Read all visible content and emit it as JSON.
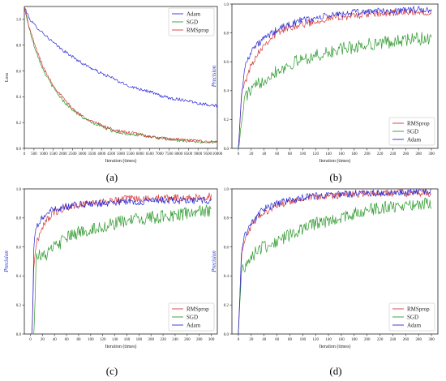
{
  "figure_labels": [
    "(a)",
    "(b)",
    "(c)",
    "(d)"
  ],
  "colors": {
    "Adam": "#2b2bd6",
    "SGD": "#2e9a2e",
    "RMSprop": "#d63a3a"
  },
  "chart_data": [
    {
      "type": "line",
      "panel": "(a)",
      "xlabel": "Iteration (times)",
      "ylabel": "Loss",
      "xlim": [
        0,
        10000
      ],
      "ylim": [
        0,
        1.1
      ],
      "xticks": [
        0,
        500,
        1000,
        1500,
        2000,
        2500,
        3000,
        3500,
        4000,
        4500,
        5000,
        5500,
        6000,
        6500,
        7000,
        7500,
        8000,
        8500,
        9000,
        9500,
        10000
      ],
      "yticks": [
        0.0,
        0.2,
        0.4,
        0.6,
        0.8,
        1.0
      ],
      "legend": {
        "position": "top-right",
        "entries": [
          "Adam",
          "SGD",
          "RMSprop"
        ]
      },
      "series": [
        {
          "name": "Adam",
          "x": [
            0,
            250,
            500,
            1000,
            1500,
            2000,
            2500,
            3000,
            3500,
            4000,
            4500,
            5000,
            5500,
            6000,
            6500,
            7000,
            7500,
            8000,
            8500,
            9000,
            9500,
            10000
          ],
          "y": [
            1.1,
            1.01,
            0.96,
            0.89,
            0.82,
            0.76,
            0.71,
            0.66,
            0.62,
            0.58,
            0.55,
            0.51,
            0.48,
            0.46,
            0.44,
            0.41,
            0.39,
            0.38,
            0.37,
            0.35,
            0.34,
            0.33
          ]
        },
        {
          "name": "SGD",
          "x": [
            0,
            250,
            500,
            1000,
            1500,
            2000,
            2500,
            3000,
            3500,
            4000,
            4500,
            5000,
            5500,
            6000,
            6500,
            7000,
            7500,
            8000,
            8500,
            9000,
            9500,
            10000
          ],
          "y": [
            1.1,
            0.93,
            0.8,
            0.6,
            0.47,
            0.37,
            0.3,
            0.24,
            0.2,
            0.17,
            0.14,
            0.12,
            0.11,
            0.1,
            0.09,
            0.08,
            0.07,
            0.06,
            0.06,
            0.05,
            0.05,
            0.05
          ]
        },
        {
          "name": "RMSprop",
          "x": [
            0,
            250,
            500,
            1000,
            1500,
            2000,
            2500,
            3000,
            3500,
            4000,
            4500,
            5000,
            5500,
            6000,
            6500,
            7000,
            7500,
            8000,
            8500,
            9000,
            9500,
            10000
          ],
          "y": [
            1.1,
            0.94,
            0.82,
            0.62,
            0.49,
            0.39,
            0.31,
            0.25,
            0.21,
            0.18,
            0.15,
            0.13,
            0.12,
            0.11,
            0.09,
            0.08,
            0.07,
            0.07,
            0.06,
            0.06,
            0.05,
            0.05
          ]
        }
      ]
    },
    {
      "type": "line",
      "panel": "(b)",
      "xlabel": "Iteration (times)",
      "ylabel": "Precision",
      "xlim": [
        -10,
        310
      ],
      "ylim": [
        0,
        1.0
      ],
      "xticks": [
        0,
        20,
        40,
        60,
        80,
        100,
        120,
        140,
        160,
        180,
        200,
        220,
        240,
        260,
        280,
        300
      ],
      "yticks": [
        0.0,
        0.2,
        0.4,
        0.6,
        0.8,
        1.0
      ],
      "legend": {
        "position": "bottom-right",
        "entries": [
          "RMSprop",
          "SGD",
          "Adam"
        ]
      },
      "series": [
        {
          "name": "RMSprop",
          "x": [
            0,
            5,
            10,
            20,
            30,
            40,
            60,
            80,
            100,
            120,
            140,
            160,
            180,
            200,
            220,
            240,
            260,
            280,
            300
          ],
          "y": [
            0.0,
            0.38,
            0.45,
            0.58,
            0.66,
            0.72,
            0.8,
            0.84,
            0.86,
            0.88,
            0.9,
            0.91,
            0.92,
            0.93,
            0.93,
            0.94,
            0.94,
            0.94,
            0.95
          ]
        },
        {
          "name": "SGD",
          "x": [
            0,
            5,
            10,
            20,
            30,
            40,
            60,
            80,
            100,
            120,
            140,
            160,
            180,
            200,
            220,
            240,
            260,
            280,
            300
          ],
          "y": [
            0.0,
            0.17,
            0.36,
            0.4,
            0.44,
            0.48,
            0.54,
            0.58,
            0.62,
            0.64,
            0.66,
            0.69,
            0.7,
            0.72,
            0.73,
            0.74,
            0.75,
            0.76,
            0.76
          ]
        },
        {
          "name": "Adam",
          "x": [
            0,
            5,
            10,
            20,
            30,
            40,
            60,
            80,
            100,
            120,
            140,
            160,
            180,
            200,
            220,
            240,
            260,
            280,
            300
          ],
          "y": [
            0.0,
            0.38,
            0.56,
            0.68,
            0.72,
            0.76,
            0.82,
            0.86,
            0.89,
            0.9,
            0.92,
            0.93,
            0.94,
            0.95,
            0.95,
            0.95,
            0.96,
            0.96,
            0.96
          ]
        }
      ]
    },
    {
      "type": "line",
      "panel": "(c)",
      "xlabel": "Iteration (times)",
      "ylabel": "Precision",
      "xlim": [
        -10,
        310
      ],
      "ylim": [
        0,
        1.0
      ],
      "xticks": [
        0,
        20,
        40,
        60,
        80,
        100,
        120,
        140,
        160,
        180,
        200,
        220,
        240,
        260,
        280,
        300
      ],
      "yticks": [
        0.0,
        0.2,
        0.4,
        0.6,
        0.8,
        1.0
      ],
      "legend": {
        "position": "bottom-right",
        "entries": [
          "RMSprop",
          "SGD",
          "Adam"
        ]
      },
      "series": [
        {
          "name": "RMSprop",
          "x": [
            0,
            3,
            6,
            10,
            20,
            30,
            40,
            60,
            80,
            100,
            120,
            140,
            160,
            180,
            200,
            220,
            240,
            260,
            280,
            300
          ],
          "y": [
            0.0,
            0.0,
            0.5,
            0.62,
            0.74,
            0.8,
            0.84,
            0.87,
            0.89,
            0.9,
            0.91,
            0.92,
            0.93,
            0.93,
            0.93,
            0.94,
            0.94,
            0.94,
            0.94,
            0.95
          ]
        },
        {
          "name": "SGD",
          "x": [
            0,
            3,
            6,
            10,
            20,
            30,
            40,
            60,
            80,
            100,
            120,
            140,
            160,
            180,
            200,
            220,
            240,
            260,
            280,
            300
          ],
          "y": [
            0.0,
            0.0,
            0.0,
            0.56,
            0.53,
            0.56,
            0.6,
            0.66,
            0.7,
            0.72,
            0.74,
            0.76,
            0.78,
            0.79,
            0.8,
            0.81,
            0.82,
            0.83,
            0.84,
            0.85
          ]
        },
        {
          "name": "Adam",
          "x": [
            0,
            3,
            6,
            10,
            20,
            30,
            40,
            60,
            80,
            100,
            120,
            140,
            160,
            180,
            200,
            220,
            240,
            260,
            280,
            300
          ],
          "y": [
            0.0,
            0.0,
            0.62,
            0.74,
            0.8,
            0.84,
            0.86,
            0.88,
            0.89,
            0.9,
            0.9,
            0.91,
            0.91,
            0.91,
            0.92,
            0.92,
            0.92,
            0.92,
            0.92,
            0.92
          ]
        }
      ]
    },
    {
      "type": "line",
      "panel": "(d)",
      "xlabel": "Iteration (times)",
      "ylabel": "Precision",
      "xlim": [
        -10,
        310
      ],
      "ylim": [
        0,
        1.0
      ],
      "xticks": [
        0,
        20,
        40,
        60,
        80,
        100,
        120,
        140,
        160,
        180,
        200,
        220,
        240,
        260,
        280,
        300
      ],
      "yticks": [
        0.0,
        0.2,
        0.4,
        0.6,
        0.8,
        1.0
      ],
      "legend": {
        "position": "bottom-right",
        "entries": [
          "RMSprop",
          "SGD",
          "Adam"
        ]
      },
      "series": [
        {
          "name": "RMSprop",
          "x": [
            0,
            5,
            10,
            20,
            30,
            40,
            60,
            80,
            100,
            120,
            140,
            160,
            180,
            200,
            220,
            240,
            260,
            280,
            300
          ],
          "y": [
            0.0,
            0.55,
            0.66,
            0.74,
            0.8,
            0.84,
            0.88,
            0.91,
            0.93,
            0.94,
            0.95,
            0.96,
            0.96,
            0.97,
            0.97,
            0.97,
            0.97,
            0.97,
            0.97
          ]
        },
        {
          "name": "SGD",
          "x": [
            0,
            5,
            10,
            20,
            30,
            40,
            60,
            80,
            100,
            120,
            140,
            160,
            180,
            200,
            220,
            240,
            260,
            280,
            300
          ],
          "y": [
            0.0,
            0.45,
            0.47,
            0.53,
            0.58,
            0.6,
            0.64,
            0.68,
            0.72,
            0.76,
            0.78,
            0.8,
            0.83,
            0.85,
            0.87,
            0.88,
            0.89,
            0.9,
            0.9
          ]
        },
        {
          "name": "Adam",
          "x": [
            0,
            5,
            10,
            20,
            30,
            40,
            60,
            80,
            100,
            120,
            140,
            160,
            180,
            200,
            220,
            240,
            260,
            280,
            300
          ],
          "y": [
            0.0,
            0.58,
            0.68,
            0.76,
            0.82,
            0.86,
            0.9,
            0.92,
            0.94,
            0.95,
            0.96,
            0.96,
            0.97,
            0.97,
            0.97,
            0.98,
            0.98,
            0.98,
            0.98
          ]
        }
      ]
    }
  ]
}
